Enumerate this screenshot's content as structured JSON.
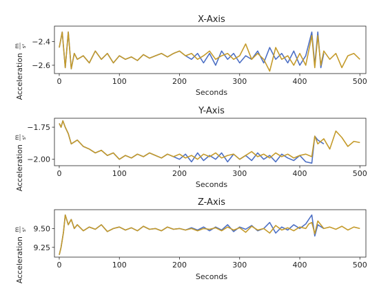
{
  "chart_data": [
    {
      "type": "line",
      "title": "X-Axis",
      "xlabel": "Seconds",
      "ylabel": "Acceleration m/s²",
      "ylabel_text": "Acceleration",
      "ylabel_unit_num": "m",
      "ylabel_unit_den": "s²",
      "xlim": [
        -8,
        510
      ],
      "ylim": [
        -2.67,
        -2.27
      ],
      "xticks": [
        0,
        100,
        200,
        300,
        400,
        500
      ],
      "xtick_labels": [
        "0",
        "100",
        "200",
        "300",
        "400",
        "500"
      ],
      "yticks": [
        -2.4,
        -2.6
      ],
      "ytick_labels": [
        "−2.4",
        "−2.6"
      ],
      "grid": false,
      "series": [
        {
          "color": "#4C6FC4",
          "x": [
            0,
            5,
            10,
            15,
            20,
            25,
            30,
            40,
            50,
            60,
            70,
            80,
            90,
            100,
            110,
            120,
            130,
            140,
            150,
            160,
            170,
            180,
            190,
            200,
            210,
            220,
            230,
            240,
            250,
            260,
            270,
            280,
            290,
            300,
            310,
            320,
            330,
            340,
            350,
            360,
            370,
            380,
            390,
            400,
            410,
            420,
            425,
            430,
            435,
            440
          ],
          "y": [
            -2.45,
            -2.32,
            -2.62,
            -2.32,
            -2.63,
            -2.5,
            -2.55,
            -2.52,
            -2.58,
            -2.48,
            -2.55,
            -2.5,
            -2.58,
            -2.52,
            -2.55,
            -2.53,
            -2.56,
            -2.51,
            -2.54,
            -2.52,
            -2.5,
            -2.53,
            -2.5,
            -2.48,
            -2.52,
            -2.55,
            -2.5,
            -2.58,
            -2.5,
            -2.6,
            -2.48,
            -2.55,
            -2.5,
            -2.58,
            -2.52,
            -2.55,
            -2.48,
            -2.58,
            -2.45,
            -2.55,
            -2.5,
            -2.58,
            -2.48,
            -2.6,
            -2.52,
            -2.32,
            -2.6,
            -2.32,
            -2.62,
            -2.5
          ]
        },
        {
          "color": "#C49A2A",
          "x": [
            0,
            5,
            10,
            15,
            20,
            25,
            30,
            40,
            50,
            60,
            70,
            80,
            90,
            100,
            110,
            120,
            130,
            140,
            150,
            160,
            170,
            180,
            190,
            200,
            210,
            220,
            230,
            240,
            250,
            260,
            270,
            280,
            290,
            300,
            310,
            320,
            330,
            340,
            350,
            360,
            370,
            380,
            390,
            400,
            410,
            420,
            425,
            430,
            435,
            440,
            450,
            460,
            470,
            480,
            490,
            500
          ],
          "y": [
            -2.45,
            -2.32,
            -2.62,
            -2.32,
            -2.63,
            -2.5,
            -2.55,
            -2.52,
            -2.58,
            -2.48,
            -2.55,
            -2.5,
            -2.58,
            -2.52,
            -2.55,
            -2.53,
            -2.56,
            -2.51,
            -2.54,
            -2.52,
            -2.5,
            -2.53,
            -2.5,
            -2.48,
            -2.52,
            -2.5,
            -2.55,
            -2.52,
            -2.48,
            -2.55,
            -2.52,
            -2.5,
            -2.55,
            -2.52,
            -2.42,
            -2.55,
            -2.5,
            -2.55,
            -2.65,
            -2.45,
            -2.55,
            -2.52,
            -2.6,
            -2.5,
            -2.6,
            -2.35,
            -2.62,
            -2.35,
            -2.6,
            -2.48,
            -2.55,
            -2.5,
            -2.62,
            -2.52,
            -2.5,
            -2.55
          ]
        }
      ]
    },
    {
      "type": "line",
      "title": "Y-Axis",
      "xlabel": "Seconds",
      "ylabel": "Acceleration m/s²",
      "ylabel_text": "Acceleration",
      "ylabel_unit_num": "m",
      "ylabel_unit_den": "s²",
      "xlim": [
        -8,
        510
      ],
      "ylim": [
        -2.05,
        -1.68
      ],
      "xticks": [
        0,
        100,
        200,
        300,
        400,
        500
      ],
      "xtick_labels": [
        "0",
        "100",
        "200",
        "300",
        "400",
        "500"
      ],
      "yticks": [
        -1.75,
        -2.0
      ],
      "ytick_labels": [
        "−1.75",
        "−2.00"
      ],
      "grid": false,
      "series": [
        {
          "color": "#4C6FC4",
          "x": [
            0,
            3,
            6,
            10,
            15,
            20,
            30,
            40,
            50,
            60,
            70,
            80,
            90,
            100,
            110,
            120,
            130,
            140,
            150,
            160,
            170,
            180,
            190,
            200,
            210,
            220,
            230,
            240,
            250,
            260,
            270,
            280,
            290,
            300,
            310,
            320,
            330,
            340,
            350,
            360,
            370,
            380,
            390,
            400,
            410,
            420,
            425,
            430,
            440
          ],
          "y": [
            -1.72,
            -1.75,
            -1.7,
            -1.75,
            -1.8,
            -1.88,
            -1.85,
            -1.9,
            -1.92,
            -1.95,
            -1.93,
            -1.97,
            -1.95,
            -2.0,
            -1.97,
            -1.99,
            -1.96,
            -1.98,
            -1.95,
            -1.97,
            -1.99,
            -1.96,
            -1.98,
            -2.0,
            -1.96,
            -2.02,
            -1.95,
            -2.01,
            -1.97,
            -2.0,
            -1.95,
            -2.02,
            -1.96,
            -2.0,
            -1.97,
            -2.01,
            -1.95,
            -2.0,
            -1.97,
            -2.02,
            -1.96,
            -1.99,
            -2.01,
            -1.97,
            -2.02,
            -2.03,
            -1.82,
            -1.85,
            -1.88
          ]
        },
        {
          "color": "#C49A2A",
          "x": [
            0,
            3,
            6,
            10,
            15,
            20,
            30,
            40,
            50,
            60,
            70,
            80,
            90,
            100,
            110,
            120,
            130,
            140,
            150,
            160,
            170,
            180,
            190,
            200,
            210,
            220,
            230,
            240,
            250,
            260,
            270,
            280,
            290,
            300,
            310,
            320,
            330,
            340,
            350,
            360,
            370,
            380,
            390,
            400,
            410,
            420,
            425,
            430,
            440,
            450,
            460,
            470,
            480,
            490,
            500
          ],
          "y": [
            -1.72,
            -1.75,
            -1.7,
            -1.75,
            -1.8,
            -1.88,
            -1.85,
            -1.9,
            -1.92,
            -1.95,
            -1.93,
            -1.97,
            -1.95,
            -2.0,
            -1.97,
            -1.99,
            -1.96,
            -1.98,
            -1.95,
            -1.97,
            -1.99,
            -1.96,
            -1.98,
            -1.96,
            -1.99,
            -1.97,
            -2.0,
            -1.96,
            -1.98,
            -1.95,
            -1.99,
            -1.97,
            -1.96,
            -2.0,
            -1.97,
            -1.94,
            -1.98,
            -1.96,
            -1.99,
            -1.95,
            -1.98,
            -1.96,
            -1.99,
            -1.97,
            -1.96,
            -1.98,
            -1.82,
            -1.88,
            -1.84,
            -1.92,
            -1.78,
            -1.83,
            -1.9,
            -1.86,
            -1.87
          ]
        }
      ]
    },
    {
      "type": "line",
      "title": "Z-Axis",
      "xlabel": "Seconds",
      "ylabel": "Acceleration m/s²",
      "ylabel_text": "Acceleration",
      "ylabel_unit_num": "m",
      "ylabel_unit_den": "s²",
      "xlim": [
        -8,
        510
      ],
      "ylim": [
        9.12,
        9.75
      ],
      "xticks": [
        0,
        100,
        200,
        300,
        400,
        500
      ],
      "xtick_labels": [
        "0",
        "100",
        "200",
        "300",
        "400",
        "500"
      ],
      "yticks": [
        9.5,
        9.25
      ],
      "ytick_labels": [
        "9.50",
        "9.25"
      ],
      "grid": false,
      "series": [
        {
          "color": "#4C6FC4",
          "x": [
            0,
            3,
            7,
            10,
            15,
            20,
            25,
            30,
            40,
            50,
            60,
            70,
            80,
            90,
            100,
            110,
            120,
            130,
            140,
            150,
            160,
            170,
            180,
            190,
            200,
            210,
            220,
            230,
            240,
            250,
            260,
            270,
            280,
            290,
            300,
            310,
            320,
            330,
            340,
            350,
            360,
            370,
            380,
            390,
            400,
            410,
            415,
            420,
            425,
            430,
            440
          ],
          "y": [
            9.15,
            9.25,
            9.45,
            9.68,
            9.55,
            9.62,
            9.5,
            9.55,
            9.47,
            9.52,
            9.49,
            9.55,
            9.46,
            9.5,
            9.52,
            9.48,
            9.51,
            9.47,
            9.53,
            9.49,
            9.5,
            9.47,
            9.52,
            9.49,
            9.5,
            9.48,
            9.51,
            9.48,
            9.52,
            9.47,
            9.52,
            9.48,
            9.55,
            9.46,
            9.52,
            9.49,
            9.54,
            9.47,
            9.5,
            9.58,
            9.44,
            9.52,
            9.48,
            9.55,
            9.5,
            9.56,
            9.62,
            9.68,
            9.4,
            9.55,
            9.5
          ]
        },
        {
          "color": "#C49A2A",
          "x": [
            0,
            3,
            7,
            10,
            15,
            20,
            25,
            30,
            40,
            50,
            60,
            70,
            80,
            90,
            100,
            110,
            120,
            130,
            140,
            150,
            160,
            170,
            180,
            190,
            200,
            210,
            220,
            230,
            240,
            250,
            260,
            270,
            280,
            290,
            300,
            310,
            320,
            330,
            340,
            350,
            360,
            370,
            380,
            390,
            400,
            410,
            415,
            420,
            425,
            430,
            440,
            450,
            460,
            470,
            480,
            490,
            500
          ],
          "y": [
            9.15,
            9.25,
            9.45,
            9.68,
            9.55,
            9.62,
            9.5,
            9.55,
            9.47,
            9.52,
            9.49,
            9.55,
            9.46,
            9.5,
            9.52,
            9.48,
            9.51,
            9.47,
            9.53,
            9.49,
            9.5,
            9.47,
            9.52,
            9.49,
            9.5,
            9.48,
            9.5,
            9.47,
            9.5,
            9.49,
            9.51,
            9.47,
            9.52,
            9.48,
            9.51,
            9.45,
            9.53,
            9.48,
            9.5,
            9.44,
            9.54,
            9.48,
            9.51,
            9.47,
            9.52,
            9.5,
            9.56,
            9.58,
            9.43,
            9.6,
            9.5,
            9.52,
            9.49,
            9.53,
            9.48,
            9.52,
            9.5
          ]
        }
      ]
    }
  ]
}
